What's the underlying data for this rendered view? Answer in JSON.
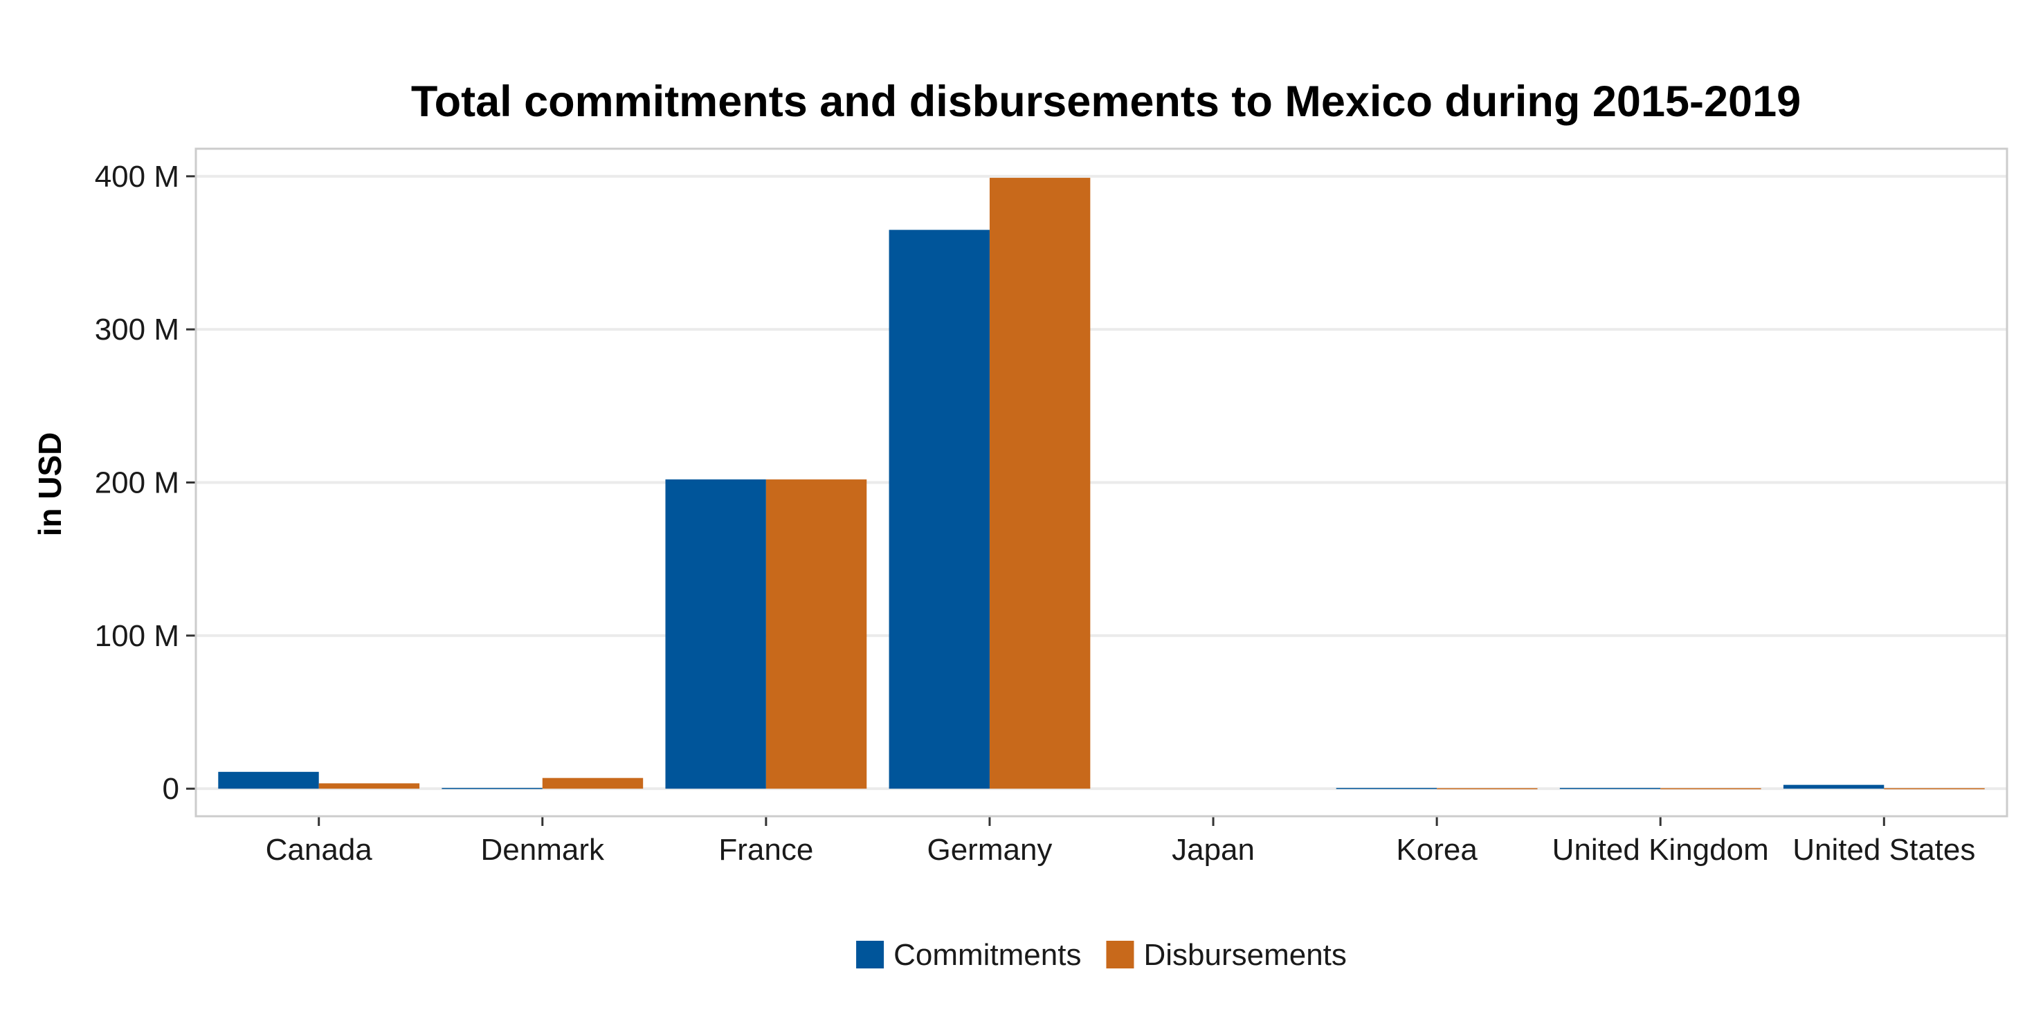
{
  "chart_data": {
    "type": "bar",
    "title": "Total commitments and disbursements to Mexico during 2015-2019",
    "xlabel": "",
    "ylabel": "in USD",
    "categories": [
      "Canada",
      "Denmark",
      "France",
      "Germany",
      "Japan",
      "Korea",
      "United Kingdom",
      "United States"
    ],
    "series": [
      {
        "name": "Commitments",
        "color": "#00559a",
        "values": [
          11000000,
          500000,
          202000000,
          365000000,
          0,
          500000,
          500000,
          2500000
        ]
      },
      {
        "name": "Disbursements",
        "color": "#c8691b",
        "values": [
          3500000,
          7000000,
          202000000,
          399000000,
          0,
          300000,
          300000,
          300000
        ]
      }
    ],
    "yticks": [
      0,
      100000000,
      200000000,
      300000000,
      400000000
    ],
    "ytick_labels": [
      "0",
      "100 M",
      "200 M",
      "300 M",
      "400 M"
    ],
    "ylim": [
      -18000000,
      418000000
    ],
    "grid": true,
    "legend_position": "bottom",
    "colors": {
      "background": "#ffffff",
      "panel_border": "#cccccc",
      "grid": "#ebebeb"
    }
  }
}
